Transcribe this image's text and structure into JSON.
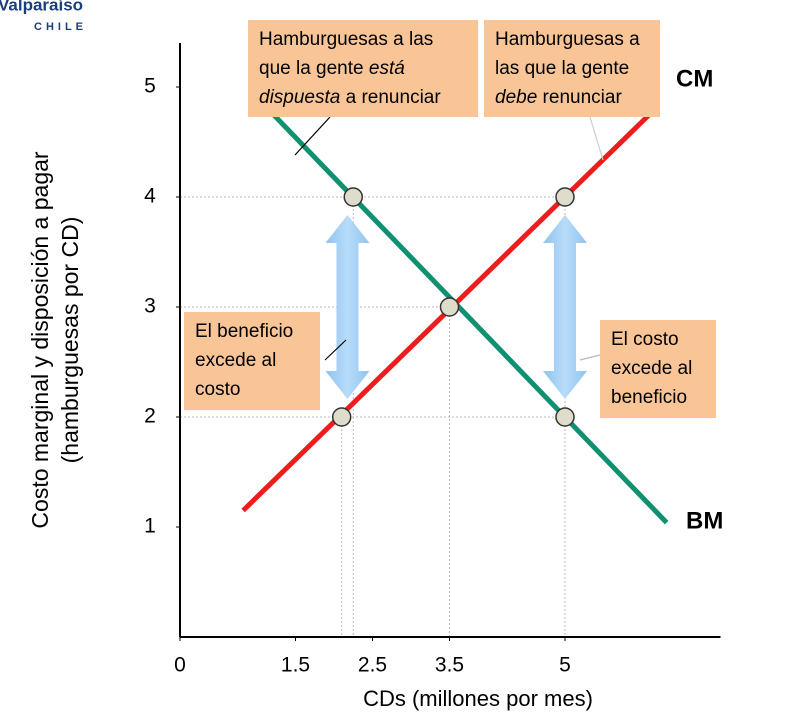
{
  "logo": {
    "name": "Valparaíso",
    "country": "CHILE"
  },
  "chart_data": {
    "type": "line",
    "ylabel": [
      "Costo marginal y disposición a pagar",
      "(hamburguesas por CD)"
    ],
    "xlabel": "CDs (millones por mes)",
    "xlim": [
      0,
      6.5
    ],
    "xticks": [
      0,
      1.5,
      2.5,
      3.5,
      5
    ],
    "ylim": [
      0,
      5.4
    ],
    "yticks": [
      1,
      2,
      3,
      4,
      5
    ],
    "series": [
      {
        "name": "CM",
        "color": "#ee1c1c",
        "x": [
          0.82,
          6.17
        ],
        "values": [
          1.15,
          4.8
        ]
      },
      {
        "name": "BM",
        "color": "#0f9070",
        "x": [
          0.91,
          6.32
        ],
        "values": [
          4.97,
          1.04
        ]
      }
    ],
    "points": {
      "x": [
        2.25,
        2.1,
        3.5,
        5,
        5
      ],
      "values": [
        4,
        2,
        3,
        4,
        2
      ]
    },
    "annotations": [
      {
        "lines": [
          [
            {
              "text": "Hamburguesas a las"
            }
          ],
          [
            {
              "text": "que la gente "
            },
            {
              "text": "está",
              "italic": true
            }
          ],
          [
            {
              "text": "dispuesta",
              "italic": true
            },
            {
              "text": " a renunciar"
            }
          ]
        ]
      },
      {
        "lines": [
          [
            {
              "text": "Hamburguesas a"
            }
          ],
          [
            {
              "text": "las que la gente"
            }
          ],
          [
            {
              "text": "debe",
              "italic": true
            },
            {
              "text": " renunciar"
            }
          ]
        ]
      },
      {
        "lines": [
          [
            {
              "text": "El beneficio"
            }
          ],
          [
            {
              "text": "excede al"
            }
          ],
          [
            {
              "text": "costo"
            }
          ]
        ]
      },
      {
        "lines": [
          [
            {
              "text": "El costo"
            }
          ],
          [
            {
              "text": "excede al"
            }
          ],
          [
            {
              "text": "beneficio"
            }
          ]
        ]
      }
    ]
  }
}
